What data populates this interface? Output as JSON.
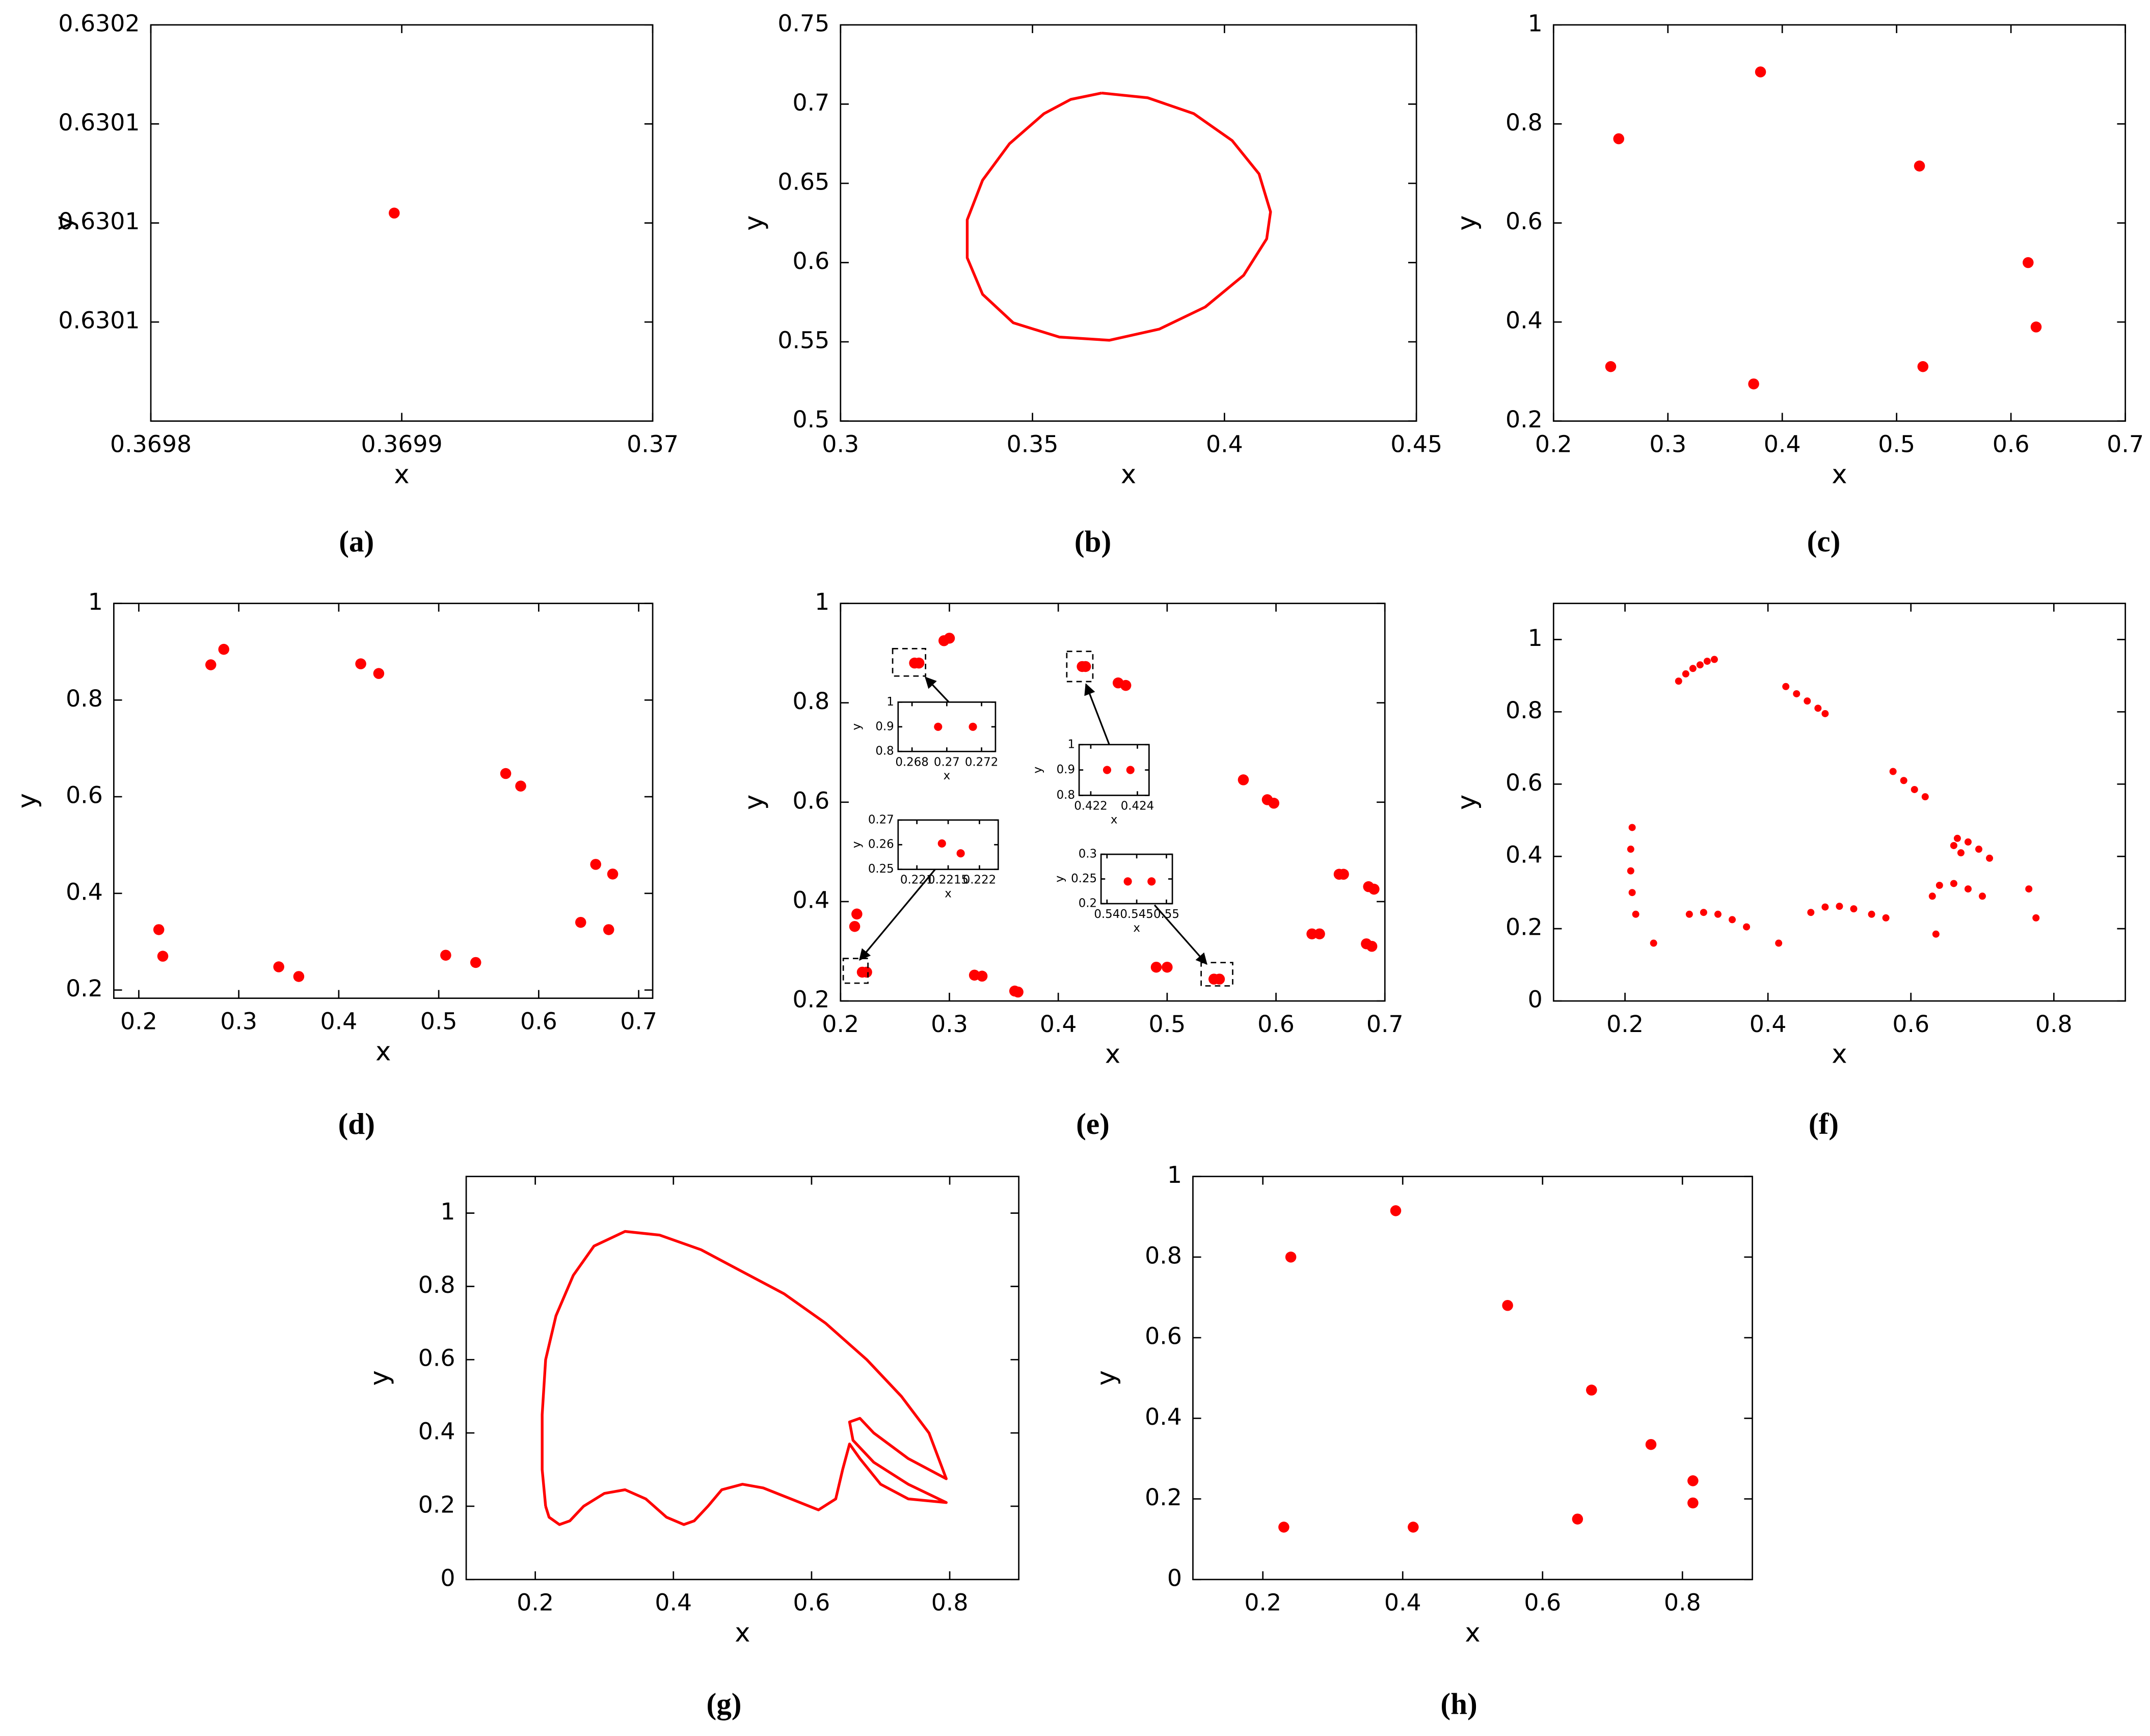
{
  "chart_data": [
    {
      "type": "scatter",
      "caption": "(a)",
      "xlabel": "x",
      "ylabel": "y",
      "color": "#ff0000",
      "xlim": [
        0.3698,
        0.37
      ],
      "xticks": [
        0.3698,
        0.3699,
        0.37
      ],
      "ylim": [
        0.63008,
        0.63016
      ],
      "yticks": [
        {
          "value": 0.63016,
          "label": "0.6302"
        },
        {
          "value": 0.63014,
          "label": "0.6301"
        },
        {
          "value": 0.63012,
          "label": "0.6301"
        },
        {
          "value": 0.6301,
          "label": "0.6301"
        }
      ],
      "x": [
        0.369897
      ],
      "values": [
        0.630122
      ]
    },
    {
      "type": "line",
      "caption": "(b)",
      "xlabel": "x",
      "ylabel": "y",
      "color": "#ff0000",
      "xlim": [
        0.3,
        0.45
      ],
      "xticks": [
        0.3,
        0.35,
        0.4,
        0.45
      ],
      "ylim": [
        0.5,
        0.75
      ],
      "yticks": [
        0.5,
        0.55,
        0.6,
        0.65,
        0.7,
        0.75
      ],
      "x": [
        0.368,
        0.38,
        0.392,
        0.402,
        0.409,
        0.412,
        0.411,
        0.405,
        0.395,
        0.383,
        0.37,
        0.357,
        0.345,
        0.337,
        0.333,
        0.333,
        0.337,
        0.344,
        0.353,
        0.36,
        0.368
      ],
      "values": [
        0.707,
        0.704,
        0.694,
        0.677,
        0.656,
        0.632,
        0.615,
        0.592,
        0.572,
        0.558,
        0.551,
        0.553,
        0.562,
        0.58,
        0.603,
        0.627,
        0.652,
        0.675,
        0.694,
        0.703,
        0.707
      ]
    },
    {
      "type": "scatter",
      "caption": "(c)",
      "xlabel": "x",
      "ylabel": "y",
      "color": "#ff0000",
      "xlim": [
        0.2,
        0.7
      ],
      "xticks": [
        0.2,
        0.3,
        0.4,
        0.5,
        0.6,
        0.7
      ],
      "ylim": [
        0.2,
        1
      ],
      "yticks": [
        0.2,
        0.4,
        0.6,
        0.8,
        1
      ],
      "x": [
        0.25,
        0.257,
        0.381,
        0.375,
        0.52,
        0.523,
        0.615,
        0.622
      ],
      "values": [
        0.31,
        0.77,
        0.905,
        0.275,
        0.715,
        0.31,
        0.52,
        0.39
      ]
    },
    {
      "type": "scatter",
      "caption": "(d)",
      "xlabel": "x",
      "ylabel": "y",
      "color": "#ff0000",
      "xlim": [
        0.175,
        0.714
      ],
      "xticks": [
        0.2,
        0.3,
        0.4,
        0.5,
        0.6,
        0.7
      ],
      "ylim": [
        0.183,
        1
      ],
      "yticks": [
        0.2,
        0.4,
        0.6,
        0.8,
        1
      ],
      "x": [
        0.22,
        0.224,
        0.272,
        0.285,
        0.34,
        0.36,
        0.422,
        0.44,
        0.507,
        0.537,
        0.567,
        0.582,
        0.642,
        0.657,
        0.67,
        0.674
      ],
      "values": [
        0.325,
        0.27,
        0.873,
        0.905,
        0.248,
        0.228,
        0.875,
        0.855,
        0.272,
        0.257,
        0.648,
        0.622,
        0.34,
        0.46,
        0.325,
        0.44
      ]
    },
    {
      "type": "scatter",
      "caption": "(e)",
      "xlabel": "x",
      "ylabel": "y",
      "color": "#ff0000",
      "xlim": [
        0.2,
        0.7
      ],
      "xticks": [
        0.2,
        0.3,
        0.4,
        0.5,
        0.6,
        0.7
      ],
      "ylim": [
        0.2,
        1
      ],
      "yticks": [
        0.2,
        0.4,
        0.6,
        0.8,
        1
      ],
      "x": [
        0.215,
        0.213,
        0.22,
        0.224,
        0.268,
        0.272,
        0.295,
        0.3,
        0.323,
        0.33,
        0.36,
        0.363,
        0.422,
        0.425,
        0.455,
        0.462,
        0.49,
        0.5,
        0.543,
        0.548,
        0.57,
        0.592,
        0.598,
        0.633,
        0.64,
        0.658,
        0.662,
        0.685,
        0.69,
        0.683,
        0.688
      ],
      "values": [
        0.375,
        0.35,
        0.258,
        0.258,
        0.88,
        0.88,
        0.925,
        0.93,
        0.252,
        0.25,
        0.22,
        0.218,
        0.873,
        0.873,
        0.84,
        0.835,
        0.268,
        0.268,
        0.244,
        0.244,
        0.645,
        0.605,
        0.598,
        0.335,
        0.335,
        0.455,
        0.455,
        0.43,
        0.425,
        0.315,
        0.31
      ],
      "insets": [
        {
          "type": "scatter",
          "xlabel": "x",
          "ylabel": "y",
          "color": "#ff0000",
          "xlim": [
            0.2672,
            0.2728
          ],
          "xticks": [
            0.268,
            0.27,
            0.272
          ],
          "ylim": [
            0.8,
            1
          ],
          "yticks": [
            0.8,
            0.9,
            1
          ],
          "x": [
            0.2695,
            0.2715
          ],
          "values": [
            0.9,
            0.9
          ]
        },
        {
          "type": "scatter",
          "xlabel": "x",
          "ylabel": "y",
          "color": "#ff0000",
          "xlim": [
            0.2207,
            0.2223
          ],
          "xticks": [
            0.221,
            0.2215,
            0.222
          ],
          "ylim": [
            0.25,
            0.27
          ],
          "yticks": [
            0.25,
            0.26,
            0.27
          ],
          "x": [
            0.2214,
            0.2217
          ],
          "values": [
            0.2605,
            0.2565
          ]
        },
        {
          "type": "scatter",
          "xlabel": "x",
          "ylabel": "y",
          "color": "#ff0000",
          "xlim": [
            0.4215,
            0.4245
          ],
          "xticks": [
            0.422,
            0.424
          ],
          "ylim": [
            0.8,
            1
          ],
          "yticks": [
            0.8,
            0.9,
            1
          ],
          "x": [
            0.4227,
            0.4237
          ],
          "values": [
            0.9,
            0.9
          ]
        },
        {
          "type": "scatter",
          "xlabel": "x",
          "ylabel": "y",
          "color": "#ff0000",
          "xlim": [
            0.539,
            0.551
          ],
          "xticks": [
            0.54,
            0.545,
            0.55
          ],
          "ylim": [
            0.2,
            0.3
          ],
          "yticks": [
            0.2,
            0.25,
            0.3
          ],
          "x": [
            0.5435,
            0.5475
          ],
          "values": [
            0.245,
            0.245
          ]
        }
      ]
    },
    {
      "type": "scatter",
      "caption": "(f)",
      "xlabel": "x",
      "ylabel": "y",
      "color": "#ff0000",
      "xlim": [
        0.1,
        0.9
      ],
      "xticks": [
        0.2,
        0.4,
        0.6,
        0.8
      ],
      "ylim": [
        0,
        1.1
      ],
      "yticks": [
        0,
        0.2,
        0.4,
        0.6,
        0.8,
        1
      ],
      "x": [
        0.275,
        0.285,
        0.295,
        0.305,
        0.315,
        0.325,
        0.425,
        0.44,
        0.455,
        0.47,
        0.48,
        0.575,
        0.59,
        0.605,
        0.62,
        0.21,
        0.208,
        0.208,
        0.21,
        0.215,
        0.29,
        0.31,
        0.33,
        0.35,
        0.37,
        0.46,
        0.48,
        0.5,
        0.52,
        0.545,
        0.565,
        0.63,
        0.64,
        0.66,
        0.68,
        0.7,
        0.665,
        0.68,
        0.695,
        0.71,
        0.66,
        0.67,
        0.24,
        0.415,
        0.635,
        0.765,
        0.775
      ],
      "values": [
        0.885,
        0.905,
        0.92,
        0.93,
        0.94,
        0.945,
        0.87,
        0.85,
        0.83,
        0.81,
        0.795,
        0.635,
        0.61,
        0.585,
        0.565,
        0.48,
        0.42,
        0.36,
        0.3,
        0.24,
        0.24,
        0.245,
        0.24,
        0.225,
        0.205,
        0.245,
        0.26,
        0.262,
        0.255,
        0.24,
        0.23,
        0.29,
        0.32,
        0.325,
        0.31,
        0.29,
        0.45,
        0.44,
        0.42,
        0.395,
        0.43,
        0.41,
        0.16,
        0.16,
        0.185,
        0.31,
        0.23
      ]
    },
    {
      "type": "line",
      "caption": "(g)",
      "xlabel": "x",
      "ylabel": "y",
      "color": "#ff0000",
      "xlim": [
        0.1,
        0.9
      ],
      "xticks": [
        0.2,
        0.4,
        0.6,
        0.8
      ],
      "ylim": [
        0,
        1.1
      ],
      "yticks": [
        0,
        0.2,
        0.4,
        0.6,
        0.8,
        1
      ],
      "x": [
        0.215,
        0.21,
        0.21,
        0.215,
        0.23,
        0.255,
        0.285,
        0.33,
        0.38,
        0.44,
        0.5,
        0.56,
        0.62,
        0.68,
        0.73,
        0.77,
        0.795,
        0.74,
        0.69,
        0.67,
        0.655,
        0.66,
        0.69,
        0.74,
        0.795,
        0.74,
        0.7,
        0.67,
        0.655,
        0.645,
        0.635,
        0.61,
        0.57,
        0.53,
        0.5,
        0.47,
        0.45,
        0.43,
        0.415,
        0.39,
        0.36,
        0.33,
        0.3,
        0.27,
        0.25,
        0.235,
        0.22,
        0.215
      ],
      "values": [
        0.2,
        0.3,
        0.45,
        0.6,
        0.72,
        0.83,
        0.91,
        0.95,
        0.94,
        0.9,
        0.84,
        0.78,
        0.7,
        0.6,
        0.5,
        0.4,
        0.275,
        0.33,
        0.4,
        0.44,
        0.43,
        0.38,
        0.32,
        0.26,
        0.21,
        0.22,
        0.26,
        0.33,
        0.37,
        0.3,
        0.22,
        0.19,
        0.22,
        0.25,
        0.26,
        0.245,
        0.2,
        0.16,
        0.15,
        0.17,
        0.22,
        0.245,
        0.235,
        0.2,
        0.16,
        0.15,
        0.17,
        0.2
      ]
    },
    {
      "type": "scatter",
      "caption": "(h)",
      "xlabel": "x",
      "ylabel": "y",
      "color": "#ff0000",
      "xlim": [
        0.1,
        0.9
      ],
      "xticks": [
        0.2,
        0.4,
        0.6,
        0.8
      ],
      "ylim": [
        0,
        1
      ],
      "yticks": [
        0,
        0.2,
        0.4,
        0.6,
        0.8,
        1
      ],
      "x": [
        0.23,
        0.24,
        0.39,
        0.415,
        0.55,
        0.65,
        0.67,
        0.755,
        0.815,
        0.815
      ],
      "values": [
        0.13,
        0.8,
        0.915,
        0.13,
        0.68,
        0.15,
        0.47,
        0.335,
        0.245,
        0.19
      ]
    }
  ]
}
